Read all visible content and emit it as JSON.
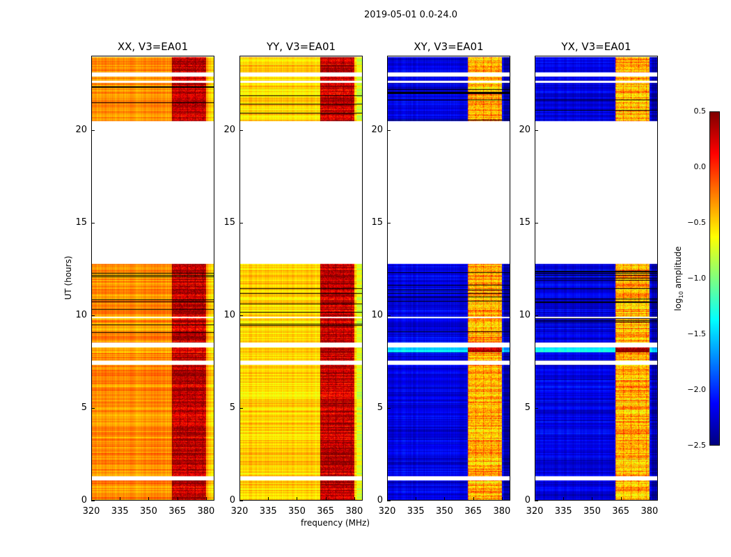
{
  "chart_data": {
    "type": "heatmap",
    "title": "2019-05-01 0.0-24.0",
    "xlabel": "frequency (MHz)",
    "ylabel": "UT (hours)",
    "xlim": [
      320,
      384.4
    ],
    "ylim": [
      0,
      24
    ],
    "xticks": [
      "320",
      "335",
      "350",
      "365",
      "380"
    ],
    "xtick_values": [
      320,
      335,
      350,
      365,
      380
    ],
    "yticks": [
      "0",
      "5",
      "10",
      "15",
      "20"
    ],
    "ytick_values": [
      0,
      5,
      10,
      15,
      20
    ],
    "colorbar": {
      "label_main": "log",
      "label_sub": "10",
      "label_rest": " amplitude",
      "range": [
        -2.5,
        0.5
      ],
      "ticks": [
        "0.5",
        "0.0",
        "−0.5",
        "−1.0",
        "−1.5",
        "−2.0",
        "−2.5"
      ],
      "tick_values": [
        0.5,
        0,
        -0.5,
        -1,
        -1.5,
        -2,
        -2.5
      ],
      "colormap": "jet"
    },
    "data_gaps_hours": [
      [
        20.5,
        23.95
      ],
      [
        12.8,
        20.5
      ],
      [
        7.35,
        7.6
      ],
      [
        8.3,
        8.6
      ],
      [
        1.05,
        1.4
      ],
      [
        0.0,
        0.0
      ]
    ],
    "blank_gaps_hours": [
      [
        12.8,
        20.5
      ],
      [
        7.35,
        7.55
      ],
      [
        8.3,
        8.55
      ],
      [
        1.1,
        1.35
      ],
      [
        22.9,
        23.1
      ],
      [
        22.55,
        22.65
      ],
      [
        9.85,
        9.95
      ]
    ],
    "rfi_band_mhz": [
      362,
      380
    ],
    "panels": [
      {
        "title": "XX, V3=EA01",
        "base_level": -0.3,
        "band_level": 0.3
      },
      {
        "title": "YY, V3=EA01",
        "base_level": -0.5,
        "band_level": 0.3
      },
      {
        "title": "XY, V3=EA01",
        "base_level": -2.2,
        "band_level": -0.4
      },
      {
        "title": "YX, V3=EA01",
        "base_level": -2.2,
        "band_level": -0.4
      }
    ]
  }
}
